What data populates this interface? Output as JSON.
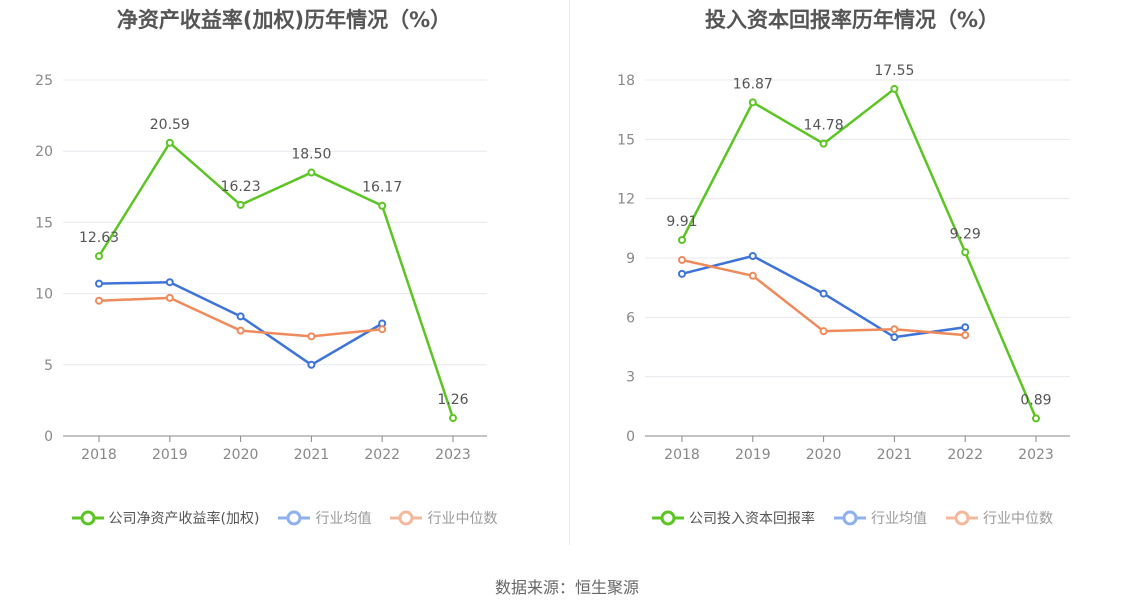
{
  "source": "数据来源：恒生聚源",
  "colors": {
    "company": "#5cc524",
    "avg": "#3e73d9",
    "median": "#ef8a5b",
    "grid": "#e6e8ee",
    "axis": "#888888"
  },
  "chart_data": [
    {
      "type": "line",
      "title": "净资产收益率(加权)历年情况（%）",
      "categories": [
        "2018",
        "2019",
        "2020",
        "2021",
        "2022",
        "2023"
      ],
      "ylim": [
        0,
        25
      ],
      "yticks": [
        "0",
        "5",
        "10",
        "15",
        "20",
        "25"
      ],
      "grid": true,
      "legend_position": "bottom",
      "series": [
        {
          "name": "公司净资产收益率(加权)",
          "key": "company",
          "values": [
            12.63,
            20.59,
            16.23,
            18.5,
            16.17,
            1.26
          ],
          "labels": [
            "12.63",
            "20.59",
            "16.23",
            "18.50",
            "16.17",
            "1.26"
          ]
        },
        {
          "name": "行业均值",
          "key": "avg",
          "values": [
            10.7,
            10.8,
            8.4,
            5.0,
            7.9,
            null
          ]
        },
        {
          "name": "行业中位数",
          "key": "median",
          "values": [
            9.5,
            9.7,
            7.4,
            7.0,
            7.5,
            null
          ]
        }
      ]
    },
    {
      "type": "line",
      "title": "投入资本回报率历年情况（%）",
      "categories": [
        "2018",
        "2019",
        "2020",
        "2021",
        "2022",
        "2023"
      ],
      "ylim": [
        0,
        18
      ],
      "yticks": [
        "0",
        "3",
        "6",
        "9",
        "12",
        "15",
        "18"
      ],
      "grid": true,
      "legend_position": "bottom",
      "series": [
        {
          "name": "公司投入资本回报率",
          "key": "company",
          "values": [
            9.91,
            16.87,
            14.78,
            17.55,
            9.29,
            0.89
          ],
          "labels": [
            "9.91",
            "16.87",
            "14.78",
            "17.55",
            "9.29",
            "0.89"
          ]
        },
        {
          "name": "行业均值",
          "key": "avg",
          "values": [
            8.2,
            9.1,
            7.2,
            5.0,
            5.5,
            null
          ]
        },
        {
          "name": "行业中位数",
          "key": "median",
          "values": [
            8.9,
            8.1,
            5.3,
            5.4,
            5.1,
            null
          ]
        }
      ]
    }
  ]
}
